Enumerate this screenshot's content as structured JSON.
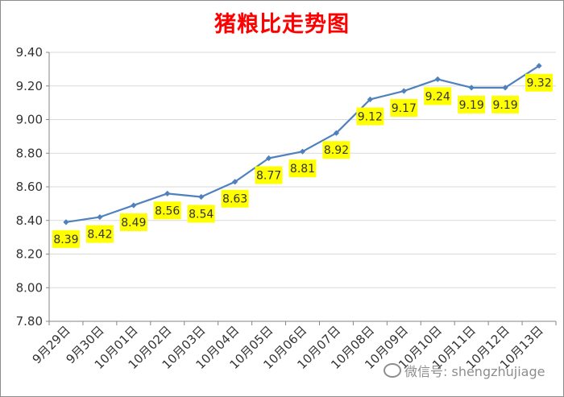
{
  "chart_data": {
    "type": "line",
    "title": "猪粮比走势图",
    "xlabel": "",
    "ylabel": "",
    "categories": [
      "9月29日",
      "9月30日",
      "10月01日",
      "10月02日",
      "10月03日",
      "10月04日",
      "10月05日",
      "10月06日",
      "10月07日",
      "10月08日",
      "10月09日",
      "10月10日",
      "10月11日",
      "10月12日",
      "10月13日"
    ],
    "series": [
      {
        "values": [
          8.39,
          8.42,
          8.49,
          8.56,
          8.54,
          8.63,
          8.77,
          8.81,
          8.92,
          9.12,
          9.17,
          9.24,
          9.19,
          9.19,
          9.32
        ]
      }
    ],
    "data_labels": [
      "8.39",
      "8.42",
      "8.49",
      "8.56",
      "8.54",
      "8.63",
      "8.77",
      "8.81",
      "8.92",
      "9.12",
      "9.17",
      "9.24",
      "9.19",
      "9.19",
      "9.32"
    ],
    "ylim": [
      7.8,
      9.4
    ],
    "yticks": [
      "7.80",
      "8.00",
      "8.20",
      "8.40",
      "8.60",
      "8.80",
      "9.00",
      "9.20",
      "9.40"
    ],
    "grid": "horizontal",
    "legend": "none",
    "colors": {
      "line": "#4f81bd",
      "label_bg": "#ffff00",
      "title": "#ff0000",
      "grid": "#d9d9d9"
    }
  },
  "watermark": {
    "text": "微信号: shengzhujiage",
    "icon": "wechat-icon"
  }
}
